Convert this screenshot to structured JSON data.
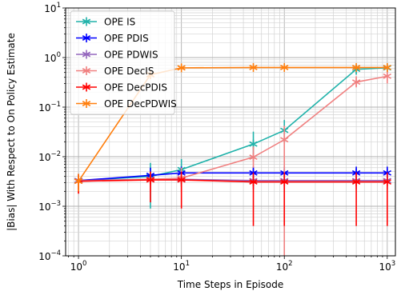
{
  "chart_data": {
    "type": "line",
    "title": "",
    "xlabel": "Time Steps in Episode",
    "ylabel": "|Bias| With Respect to On Policy Estimate",
    "xscale": "log",
    "yscale": "log",
    "xlim": [
      0.75,
      1200
    ],
    "ylim": [
      0.0001,
      10
    ],
    "grid": "on (major and minor)",
    "legend_position": "upper-left",
    "x": [
      1,
      5,
      10,
      50,
      100,
      500,
      1000
    ],
    "xticks": [
      {
        "value": 1,
        "base": "10",
        "exp": "0"
      },
      {
        "value": 10,
        "base": "10",
        "exp": "1"
      },
      {
        "value": 100,
        "base": "10",
        "exp": "2"
      },
      {
        "value": 1000,
        "base": "10",
        "exp": "3"
      }
    ],
    "yticks": [
      {
        "value": 0.0001,
        "base": "10",
        "exp": "−4"
      },
      {
        "value": 0.001,
        "base": "10",
        "exp": "−3"
      },
      {
        "value": 0.01,
        "base": "10",
        "exp": "−2"
      },
      {
        "value": 0.1,
        "base": "10",
        "exp": "−1"
      },
      {
        "value": 1,
        "base": "10",
        "exp": "0"
      },
      {
        "value": 10,
        "base": "10",
        "exp": "1"
      }
    ],
    "series": [
      {
        "name": "OPE IS",
        "color": "#20b2aa",
        "values": [
          0.0033,
          0.004,
          0.0055,
          0.018,
          0.034,
          0.58,
          0.62
        ],
        "err_low": [
          0.0022,
          0.0009,
          0.0025,
          0.011,
          0.02,
          0.45,
          0.5
        ],
        "err_high": [
          0.0045,
          0.0075,
          0.009,
          0.032,
          0.055,
          0.72,
          0.72
        ]
      },
      {
        "name": "OPE PDIS",
        "color": "#0000ff",
        "values": [
          0.0033,
          0.0042,
          0.0047,
          0.0047,
          0.0047,
          0.0047,
          0.0047
        ],
        "err_low": [
          0.0025,
          0.003,
          0.0035,
          0.0035,
          0.0035,
          0.0035,
          0.0035
        ],
        "err_high": [
          0.0045,
          0.006,
          0.0063,
          0.0063,
          0.0063,
          0.0063,
          0.0063
        ]
      },
      {
        "name": "OPE PDWIS",
        "color": "#9467bd",
        "values": [
          0.0033,
          0.0035,
          0.0035,
          0.0033,
          0.0033,
          0.0033,
          0.0033
        ],
        "err_low": [
          0.0022,
          0.0025,
          0.0025,
          0.0022,
          0.0022,
          0.0022,
          0.0022
        ],
        "err_high": [
          0.0045,
          0.0045,
          0.0045,
          0.0045,
          0.0045,
          0.0045,
          0.0045
        ]
      },
      {
        "name": "OPE DecIS",
        "color": "#f08080",
        "values": [
          0.0032,
          0.0035,
          0.0037,
          0.0098,
          0.022,
          0.32,
          0.42
        ],
        "err_low": [
          0.0018,
          0.002,
          0.002,
          0.006,
          0.0001,
          0.25,
          0.3
        ],
        "err_high": [
          0.0045,
          0.005,
          0.006,
          0.016,
          0.042,
          0.42,
          0.58
        ]
      },
      {
        "name": "OPE DecPDIS",
        "color": "#ff0000",
        "values": [
          0.0032,
          0.0034,
          0.0034,
          0.0031,
          0.0031,
          0.0031,
          0.0031
        ],
        "err_low": [
          0.0018,
          0.0012,
          0.0009,
          0.0004,
          0.0004,
          0.0004,
          0.0004
        ],
        "err_high": [
          0.0045,
          0.005,
          0.005,
          0.0048,
          0.0048,
          0.0048,
          0.0048
        ]
      },
      {
        "name": "OPE DecPDWIS",
        "color": "#ff7f0e",
        "values": [
          0.0032,
          0.45,
          0.62,
          0.63,
          0.63,
          0.63,
          0.63
        ],
        "err_low": [
          0.002,
          0.4,
          0.58,
          0.6,
          0.6,
          0.6,
          0.6
        ],
        "err_high": [
          0.0045,
          0.5,
          0.66,
          0.67,
          0.67,
          0.67,
          0.67
        ]
      }
    ]
  }
}
